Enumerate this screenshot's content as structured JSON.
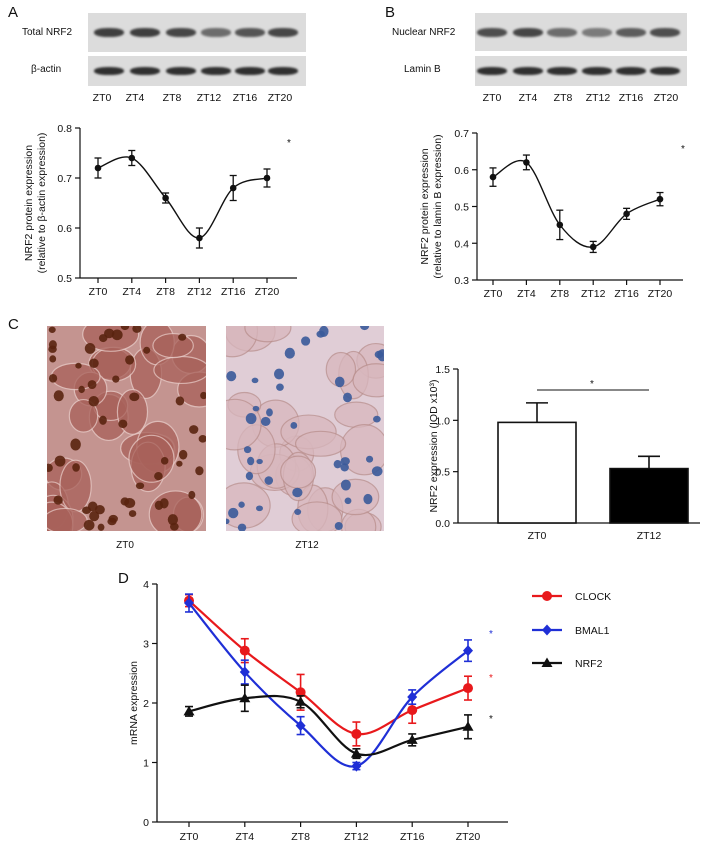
{
  "panels": {
    "A": {
      "letter": "A",
      "blot_labels": [
        "Total NRF2",
        "β-actin"
      ],
      "lanes": [
        "ZT0",
        "ZT4",
        "ZT8",
        "ZT12",
        "ZT16",
        "ZT20"
      ],
      "top_band_intensity": [
        0.85,
        0.85,
        0.8,
        0.55,
        0.7,
        0.8
      ],
      "bottom_band_intensity": [
        0.95,
        0.95,
        0.95,
        0.95,
        0.95,
        0.95
      ]
    },
    "B": {
      "letter": "B",
      "blot_labels": [
        "Nuclear NRF2",
        "Lamin B"
      ],
      "lanes": [
        "ZT0",
        "ZT4",
        "ZT8",
        "ZT12",
        "ZT16",
        "ZT20"
      ],
      "top_band_intensity": [
        0.75,
        0.8,
        0.55,
        0.45,
        0.65,
        0.75
      ],
      "bottom_band_intensity": [
        0.95,
        0.95,
        0.95,
        0.95,
        0.95,
        0.95
      ]
    },
    "C": {
      "letter": "C",
      "image_captions": [
        "ZT0",
        "ZT12"
      ]
    },
    "D": {
      "letter": "D"
    }
  },
  "chart_data": [
    {
      "id": "A",
      "type": "line",
      "categories": [
        "ZT0",
        "ZT4",
        "ZT8",
        "ZT12",
        "ZT16",
        "ZT20"
      ],
      "values": [
        0.72,
        0.74,
        0.66,
        0.58,
        0.68,
        0.7
      ],
      "errors": [
        0.02,
        0.015,
        0.01,
        0.02,
        0.025,
        0.018
      ],
      "ylabel_line1": "NRF2 protein expression",
      "ylabel_line2": "(relative to β-actin expression)",
      "ylim": [
        0.5,
        0.8
      ],
      "yticks": [
        "0.5",
        "0.6",
        "0.7",
        "0.8"
      ],
      "annotation": "*",
      "grid": false
    },
    {
      "id": "B",
      "type": "line",
      "categories": [
        "ZT0",
        "ZT4",
        "ZT8",
        "ZT12",
        "ZT16",
        "ZT20"
      ],
      "values": [
        0.58,
        0.62,
        0.45,
        0.39,
        0.48,
        0.52
      ],
      "errors": [
        0.025,
        0.02,
        0.04,
        0.015,
        0.015,
        0.018
      ],
      "ylabel_line1": "NRF2 protein expression",
      "ylabel_line2": "(relative to lamin B expression)",
      "ylim": [
        0.3,
        0.7
      ],
      "yticks": [
        "0.3",
        "0.4",
        "0.5",
        "0.6",
        "0.7"
      ],
      "annotation": "*",
      "grid": false
    },
    {
      "id": "C",
      "type": "bar",
      "categories": [
        "ZT0",
        "ZT12"
      ],
      "values": [
        0.98,
        0.53
      ],
      "errors": [
        0.19,
        0.12
      ],
      "bar_colors": [
        "#ffffff",
        "#000000"
      ],
      "ylabel": "NRF2 expression (IOD x10³)",
      "ylim": [
        0,
        1.5
      ],
      "yticks": [
        "0.0",
        "0.5",
        "1.0",
        "1.5"
      ],
      "annotation": "*",
      "grid": false
    },
    {
      "id": "D",
      "type": "line",
      "categories": [
        "ZT0",
        "ZT4",
        "ZT8",
        "ZT12",
        "ZT16",
        "ZT20"
      ],
      "ylabel": "mRNA expression",
      "ylim": [
        0,
        4
      ],
      "yticks": [
        "0",
        "1",
        "2",
        "3",
        "4"
      ],
      "legend_position": "right",
      "series": [
        {
          "name": "CLOCK",
          "color": "#e8191c",
          "marker": "circle",
          "values": [
            3.72,
            2.88,
            2.18,
            1.48,
            1.88,
            2.25
          ],
          "errors": [
            0.1,
            0.2,
            0.3,
            0.2,
            0.22,
            0.2
          ]
        },
        {
          "name": "BMAL1",
          "color": "#1f2fd6",
          "marker": "diamond",
          "values": [
            3.68,
            2.52,
            1.62,
            0.94,
            2.1,
            2.88
          ],
          "errors": [
            0.15,
            0.2,
            0.15,
            0.06,
            0.12,
            0.18
          ]
        },
        {
          "name": "NRF2",
          "color": "#111111",
          "marker": "triangle",
          "values": [
            1.86,
            2.08,
            2.02,
            1.15,
            1.38,
            1.6
          ],
          "errors": [
            0.08,
            0.22,
            0.1,
            0.08,
            0.1,
            0.2
          ]
        }
      ],
      "annotations": [
        {
          "text": "*",
          "color": "#1f2fd6"
        },
        {
          "text": "*",
          "color": "#e8191c"
        },
        {
          "text": "*",
          "color": "#111111"
        }
      ]
    }
  ]
}
